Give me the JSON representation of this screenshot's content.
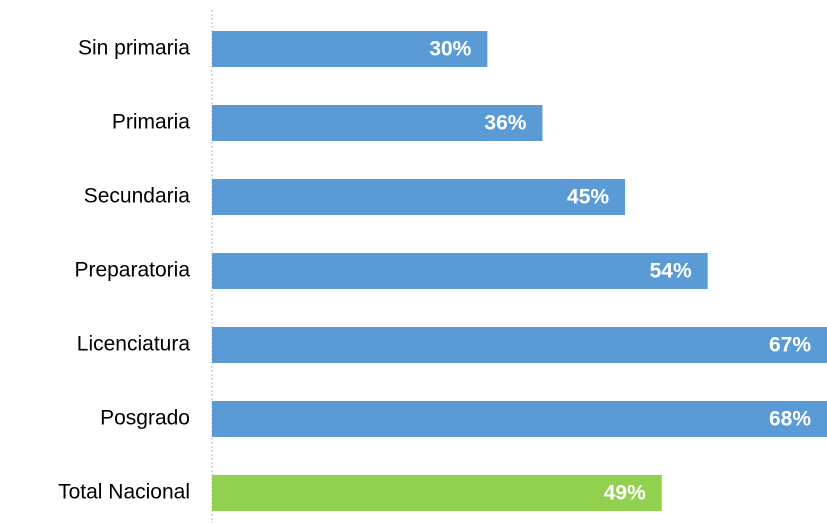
{
  "chart_data": {
    "type": "barh",
    "categories": [
      "Sin primaria",
      "Primaria",
      "Secundaria",
      "Preparatoria",
      "Licenciatura",
      "Posgrado",
      "Total Nacional"
    ],
    "values": [
      30,
      36,
      45,
      54,
      67,
      68,
      49
    ],
    "value_labels": [
      "30%",
      "36%",
      "45%",
      "54%",
      "67%",
      "68%",
      "49%"
    ],
    "colors": [
      "#5b9bd5",
      "#5b9bd5",
      "#5b9bd5",
      "#5b9bd5",
      "#5b9bd5",
      "#5b9bd5",
      "#92d050"
    ],
    "xlim": [
      0,
      67
    ]
  }
}
